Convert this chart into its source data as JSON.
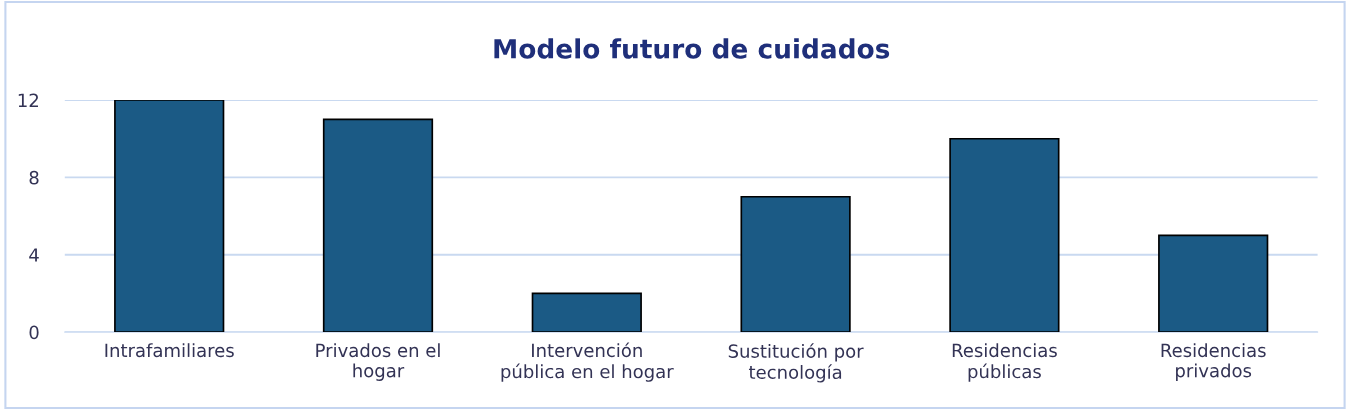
{
  "chart_data": {
    "type": "bar",
    "title": "Modelo futuro de cuidados",
    "categories": [
      "Intrafamiliares",
      "Privados en el\nhogar",
      "Intervención\npública en el hogar",
      "Sustitución por\ntecnología",
      "Residencias\npúblicas",
      "Residencias\nprivados"
    ],
    "values": [
      12,
      11,
      2,
      7,
      10,
      5
    ],
    "color": "#1b5a85",
    "ylim": [
      0,
      12
    ],
    "yticks": [
      0,
      4,
      8,
      12
    ],
    "grid": "y"
  }
}
